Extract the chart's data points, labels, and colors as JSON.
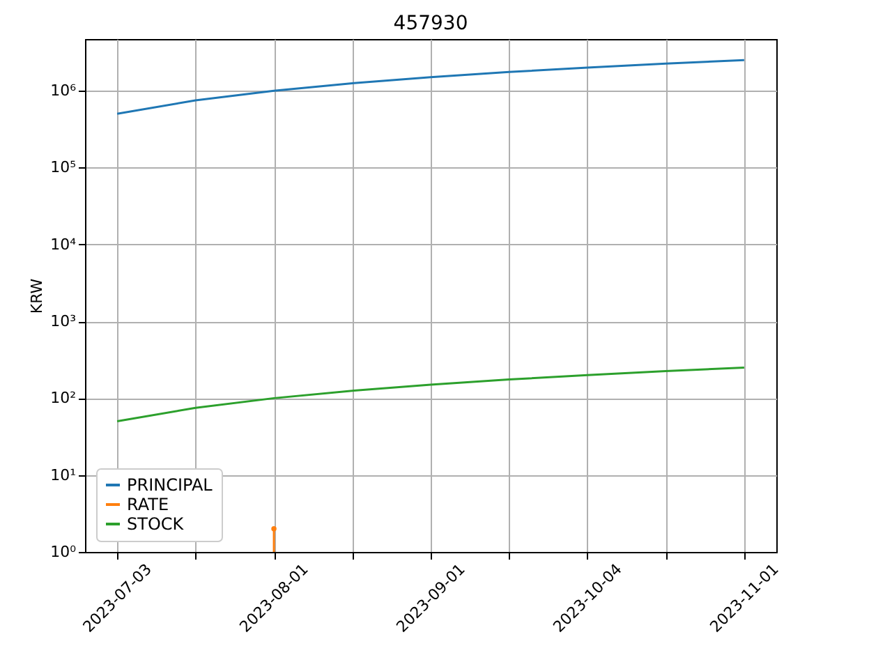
{
  "chart_data": {
    "type": "line",
    "title": "457930",
    "ylabel": "KRW",
    "categories": [
      "2023-07-03",
      null,
      "2023-08-01",
      null,
      "2023-09-01",
      null,
      "2023-10-04",
      null,
      "2023-11-01"
    ],
    "series": [
      {
        "name": "PRINCIPAL",
        "color": "#1f77b4",
        "values": [
          500000,
          750000,
          1000000,
          1250000,
          1500000,
          1750000,
          2000000,
          2250000,
          2500000
        ]
      },
      {
        "name": "RATE",
        "color": "#ff7f0e",
        "marker": "circle",
        "values": [
          null,
          null,
          2,
          null,
          null,
          null,
          null,
          null,
          null
        ]
      },
      {
        "name": "STOCK",
        "color": "#2ca02c",
        "values": [
          50,
          75,
          100,
          125,
          150,
          175,
          200,
          225,
          250
        ]
      }
    ],
    "log": true,
    "ylim": [
      1,
      4700000
    ],
    "yticks": [
      {
        "value": 1,
        "label": "10⁰"
      },
      {
        "value": 10,
        "label": "10¹"
      },
      {
        "value": 100,
        "label": "10²"
      },
      {
        "value": 1000,
        "label": "10³"
      },
      {
        "value": 10000,
        "label": "10⁴"
      },
      {
        "value": 100000,
        "label": "10⁵"
      },
      {
        "value": 1000000,
        "label": "10⁶"
      }
    ],
    "grid": true,
    "legend": "bottom left"
  }
}
